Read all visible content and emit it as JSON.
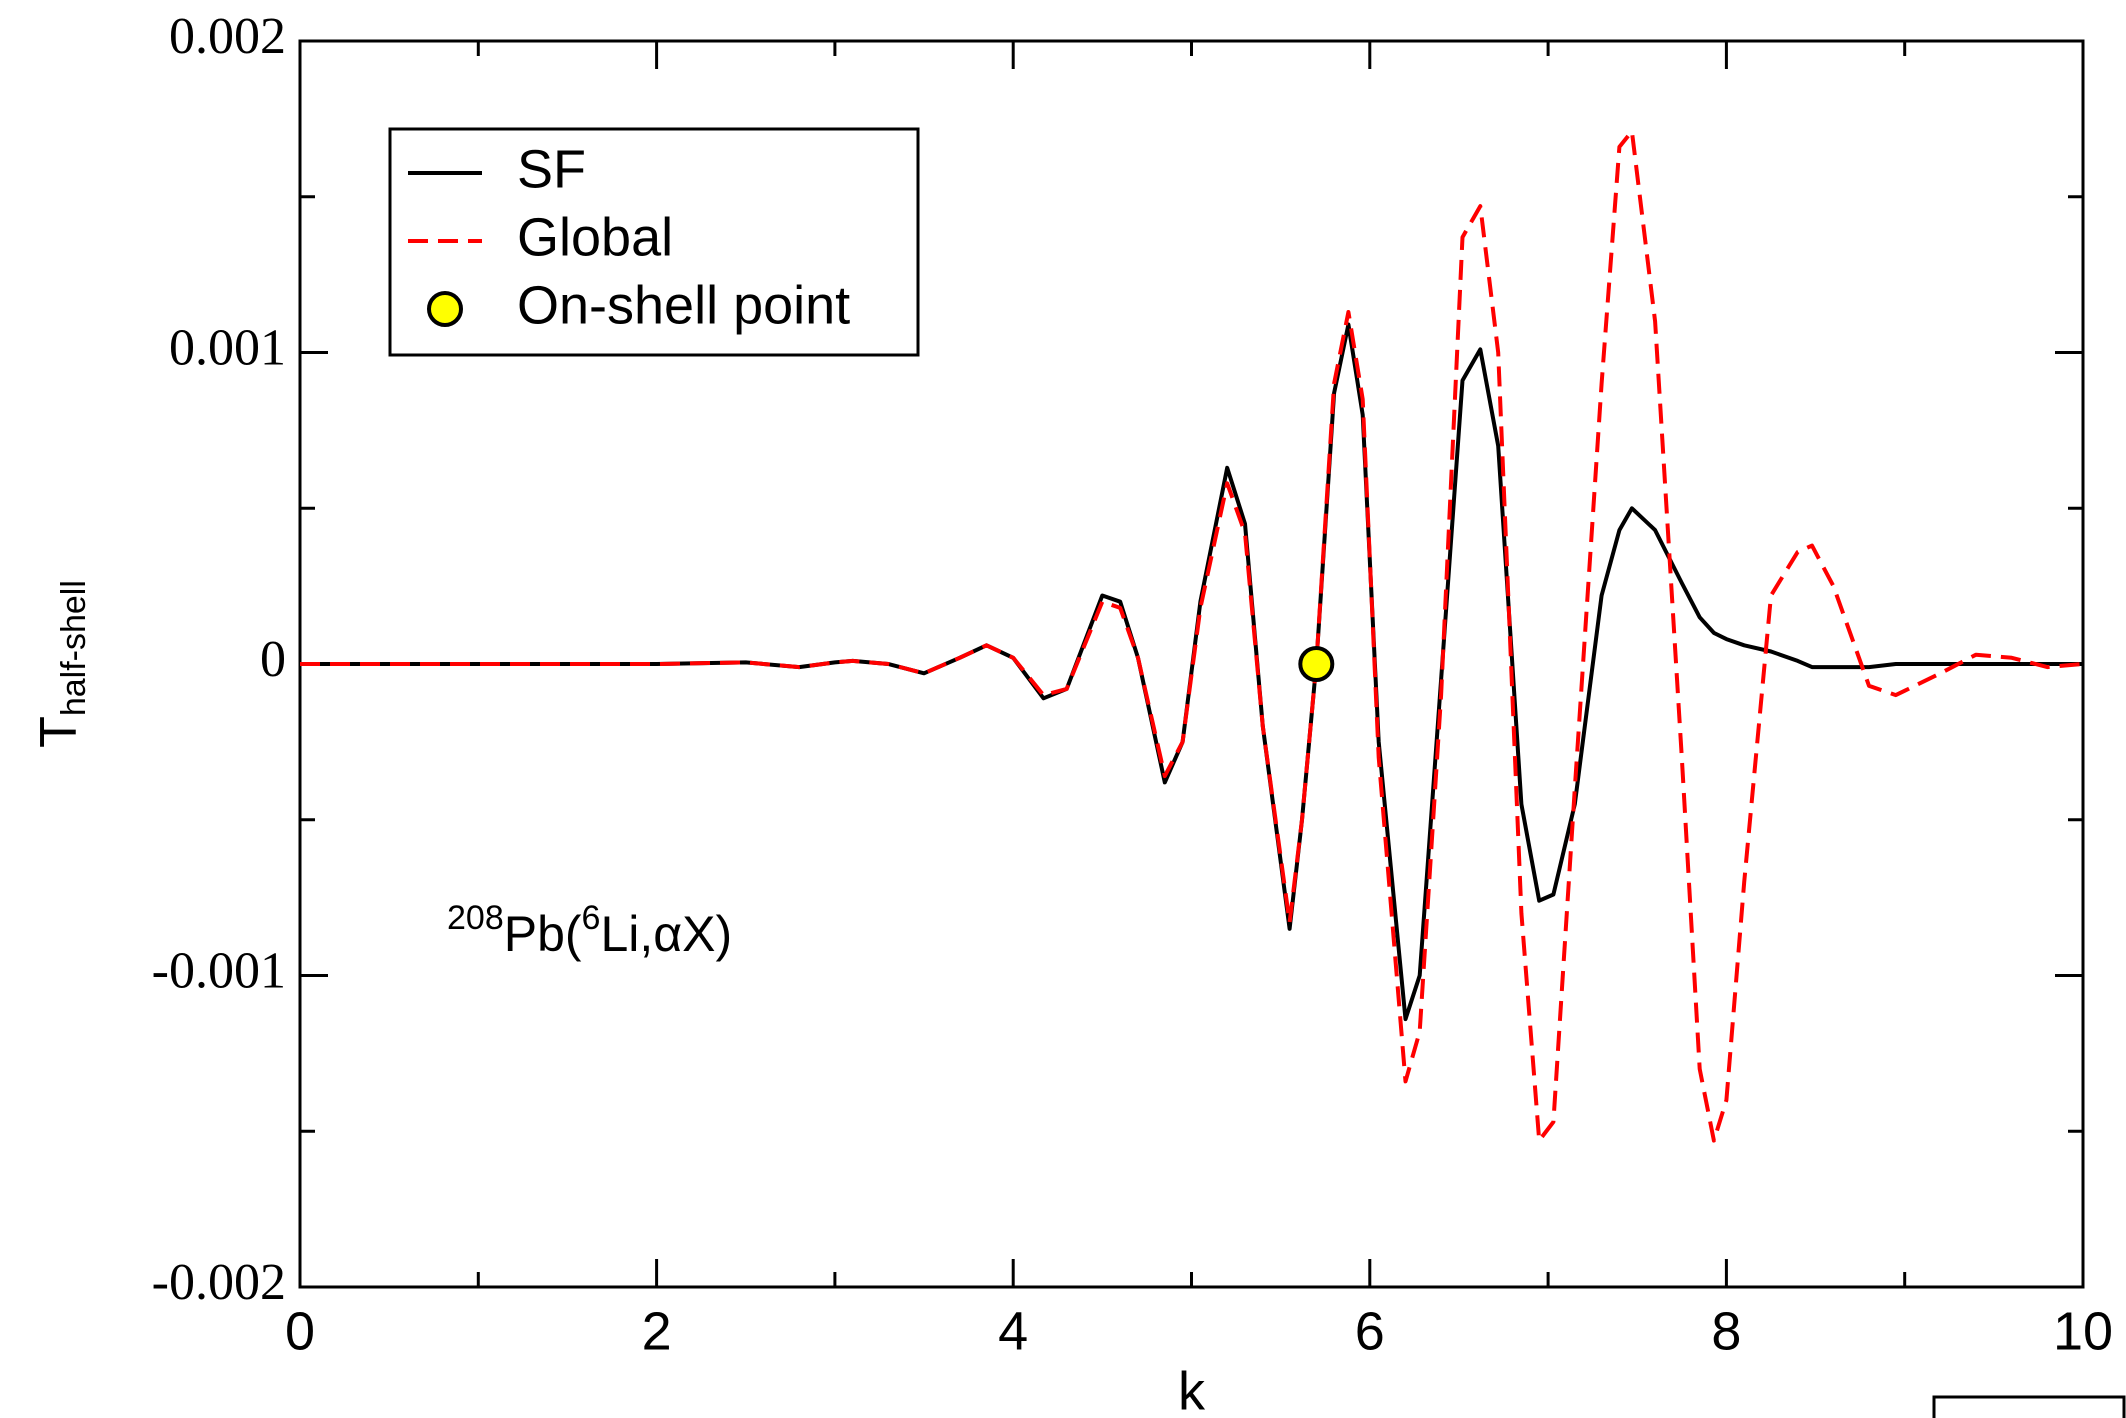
{
  "chart_data": {
    "type": "line",
    "x_label": "k",
    "y_label": {
      "main": "T",
      "sub": "half-shell"
    },
    "annotation": {
      "pre": "208",
      "main1": "Pb(",
      "sup": "6",
      "main2": "Li,αX)"
    },
    "x": [
      0,
      0.5,
      1,
      1.5,
      2,
      2.5,
      2.8,
      3.0,
      3.1,
      3.3,
      3.5,
      3.7,
      3.85,
      4.0,
      4.17,
      4.3,
      4.5,
      4.6,
      4.7,
      4.85,
      4.95,
      5.05,
      5.2,
      5.3,
      5.4,
      5.55,
      5.62,
      5.7,
      5.8,
      5.88,
      5.96,
      6.05,
      6.2,
      6.28,
      6.4,
      6.52,
      6.62,
      6.72,
      6.85,
      6.95,
      7.03,
      7.15,
      7.3,
      7.4,
      7.47,
      7.6,
      7.75,
      7.85,
      7.93,
      8.0,
      8.1,
      8.25,
      8.4,
      8.48,
      8.6,
      8.8,
      8.95,
      9.2,
      9.4,
      9.6,
      9.8,
      10
    ],
    "series": [
      {
        "name": "SF",
        "color": "#000000",
        "dash": "none",
        "values": [
          0,
          0,
          0,
          0,
          0,
          5e-06,
          -1e-05,
          5e-06,
          1e-05,
          0,
          -3e-05,
          2e-05,
          6e-05,
          2e-05,
          -0.00011,
          -8e-05,
          0.00022,
          0.0002,
          2e-05,
          -0.00038,
          -0.00025,
          0.0002,
          0.00063,
          0.00045,
          -0.0002,
          -0.00085,
          -0.0005,
          0,
          0.00087,
          0.00109,
          0.0008,
          -0.00025,
          -0.00114,
          -0.001,
          -5e-05,
          0.00091,
          0.00101,
          0.0007,
          -0.00045,
          -0.00076,
          -0.00074,
          -0.00045,
          0.00022,
          0.00043,
          0.0005,
          0.00043,
          0.00026,
          0.00015,
          0.0001,
          8e-05,
          6e-05,
          4e-05,
          1e-05,
          -1e-05,
          -1e-05,
          -1e-05,
          0,
          0,
          0,
          0,
          0,
          0
        ]
      },
      {
        "name": "Global",
        "color": "#ff0000",
        "dash": "dashed",
        "values": [
          0,
          0,
          0,
          0,
          0,
          5e-06,
          -1e-05,
          5e-06,
          1e-05,
          0,
          -3e-05,
          2e-05,
          6e-05,
          2e-05,
          -0.0001,
          -8e-05,
          0.0002,
          0.00018,
          2e-05,
          -0.00036,
          -0.00025,
          0.00018,
          0.00058,
          0.00042,
          -0.0002,
          -0.00083,
          -0.0005,
          0,
          0.0009,
          0.00113,
          0.00085,
          -0.0003,
          -0.00134,
          -0.00118,
          -0.0001,
          0.00137,
          0.00147,
          0.001,
          -0.0008,
          -0.00153,
          -0.00147,
          -0.0004,
          0.0009,
          0.00166,
          0.00171,
          0.0011,
          -0.0003,
          -0.0013,
          -0.00153,
          -0.0014,
          -0.0007,
          0.00022,
          0.00036,
          0.00038,
          0.00025,
          -7e-05,
          -0.0001,
          -3e-05,
          3e-05,
          2e-05,
          -1e-05,
          0
        ]
      }
    ],
    "point": {
      "name": "On-shell point",
      "x": 5.7,
      "y": 0,
      "color": "#ffff00"
    },
    "xlim": [
      0,
      10
    ],
    "xticks": [
      0,
      2,
      4,
      6,
      8,
      10
    ],
    "xminorticks": [
      1,
      3,
      5,
      7,
      9
    ],
    "ylim": [
      -0.002,
      0.002
    ],
    "yticks": [
      -0.002,
      -0.001,
      0,
      0.001,
      0.002
    ],
    "yminorticks": [
      -0.0015,
      -0.0005,
      0.0005,
      0.0015
    ],
    "legend": "upper left"
  }
}
